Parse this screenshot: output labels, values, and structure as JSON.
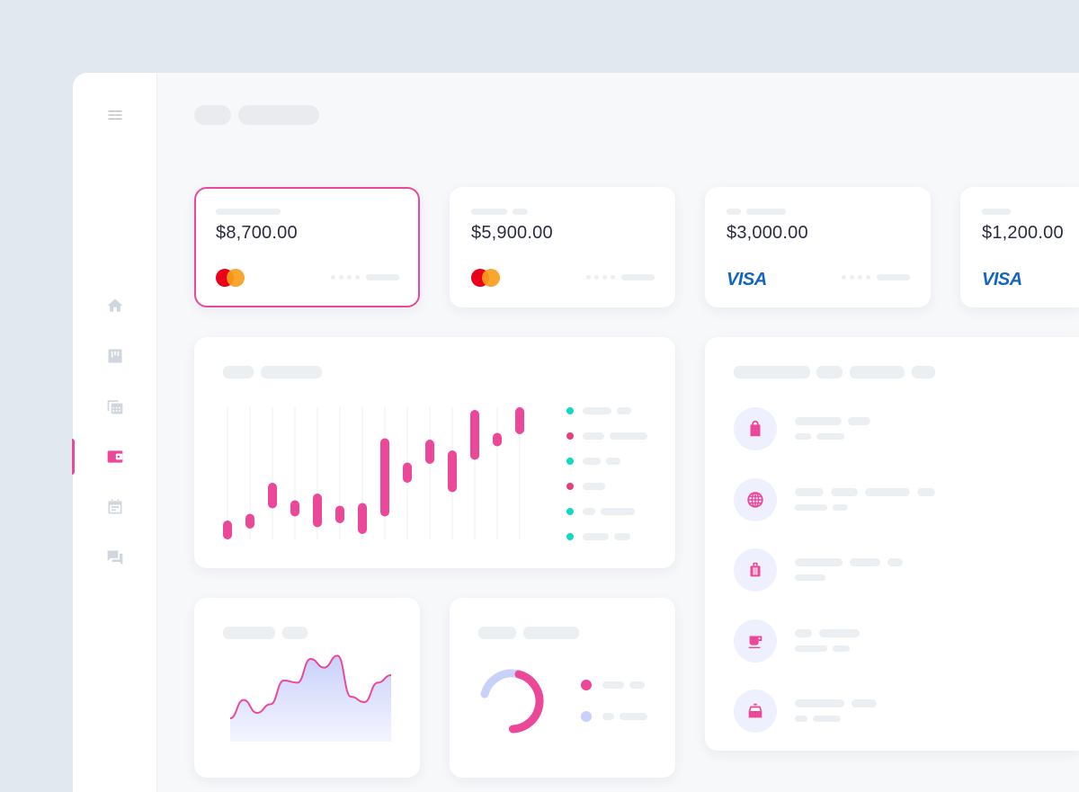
{
  "colors": {
    "accent": "#ec4899",
    "teal": "#10d9c4",
    "legend_pink": "#e83e7c",
    "icon_gray": "#cfd6dd",
    "lavender": "#c9d1fa"
  },
  "sidebar": {
    "items": [
      {
        "icon": "menu-icon"
      },
      {
        "icon": "home-icon"
      },
      {
        "icon": "board-icon"
      },
      {
        "icon": "calendar-grid-icon"
      },
      {
        "icon": "wallet-icon",
        "active": true
      },
      {
        "icon": "event-icon"
      },
      {
        "icon": "chat-icon"
      }
    ]
  },
  "cards": [
    {
      "amount": "$8,700.00",
      "brand": "mastercard",
      "selected": true
    },
    {
      "amount": "$5,900.00",
      "brand": "mastercard"
    },
    {
      "amount": "$3,000.00",
      "brand": "visa",
      "brand_label": "VISA"
    },
    {
      "amount": "$1,200.00",
      "brand": "visa",
      "brand_label": "VISA"
    }
  ],
  "chart_data": [
    {
      "type": "candlestick",
      "ranges": [
        [
          0,
          14
        ],
        [
          8,
          19
        ],
        [
          23,
          42
        ],
        [
          17,
          29
        ],
        [
          9,
          34
        ],
        [
          12,
          25
        ],
        [
          4,
          27
        ],
        [
          17,
          75
        ],
        [
          42,
          57
        ],
        [
          56,
          74
        ],
        [
          35,
          66
        ],
        [
          59,
          96
        ],
        [
          69,
          79
        ],
        [
          78,
          98
        ]
      ],
      "legend_colors": [
        "teal",
        "pink",
        "teal",
        "pink",
        "teal",
        "teal"
      ],
      "grid": "vertical"
    },
    {
      "type": "area",
      "values": [
        5,
        22,
        10,
        18,
        40,
        38,
        60,
        52,
        63,
        25,
        20,
        38,
        45
      ]
    },
    {
      "type": "donut",
      "segments": [
        {
          "color": "#c9d1fa",
          "value": 25
        },
        {
          "color": "#ec4899",
          "value": 45
        }
      ]
    }
  ],
  "transactions": [
    {
      "icon": "shopping-bag-icon"
    },
    {
      "icon": "globe-icon"
    },
    {
      "icon": "luggage-icon"
    },
    {
      "icon": "coffee-icon"
    },
    {
      "icon": "taxi-icon"
    }
  ]
}
